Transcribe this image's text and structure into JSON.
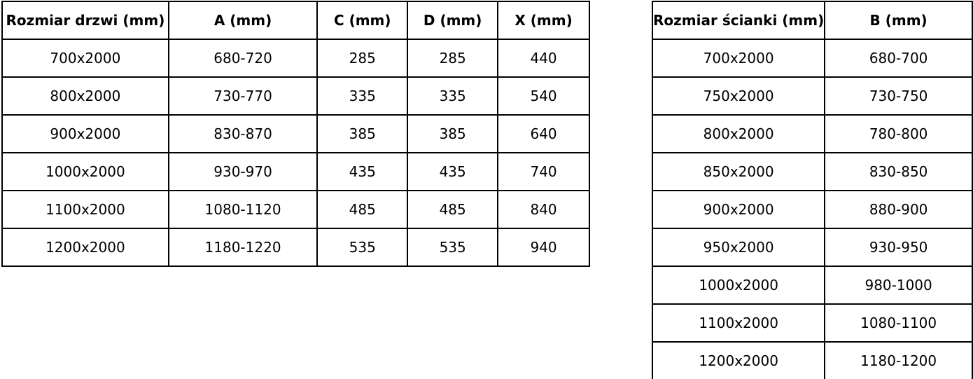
{
  "colors": {
    "border": "#000000",
    "text": "#000000",
    "background": "#ffffff"
  },
  "doors_table": {
    "name": "door-sizes",
    "headers": [
      "Rozmiar drzwi (mm)",
      "A (mm)",
      "C (mm)",
      "D (mm)",
      "X (mm)"
    ],
    "rows": [
      [
        "700x2000",
        "680-720",
        "285",
        "285",
        "440"
      ],
      [
        "800x2000",
        "730-770",
        "335",
        "335",
        "540"
      ],
      [
        "900x2000",
        "830-870",
        "385",
        "385",
        "640"
      ],
      [
        "1000x2000",
        "930-970",
        "435",
        "435",
        "740"
      ],
      [
        "1100x2000",
        "1080-1120",
        "485",
        "485",
        "840"
      ],
      [
        "1200x2000",
        "1180-1220",
        "535",
        "535",
        "940"
      ]
    ]
  },
  "walls_table": {
    "name": "wall-panel-sizes",
    "headers": [
      "Rozmiar ścianki (mm)",
      "B (mm)"
    ],
    "rows": [
      [
        "700x2000",
        "680-700"
      ],
      [
        "750x2000",
        "730-750"
      ],
      [
        "800x2000",
        "780-800"
      ],
      [
        "850x2000",
        "830-850"
      ],
      [
        "900x2000",
        "880-900"
      ],
      [
        "950x2000",
        "930-950"
      ],
      [
        "1000x2000",
        "980-1000"
      ],
      [
        "1100x2000",
        "1080-1100"
      ],
      [
        "1200x2000",
        "1180-1200"
      ]
    ]
  }
}
